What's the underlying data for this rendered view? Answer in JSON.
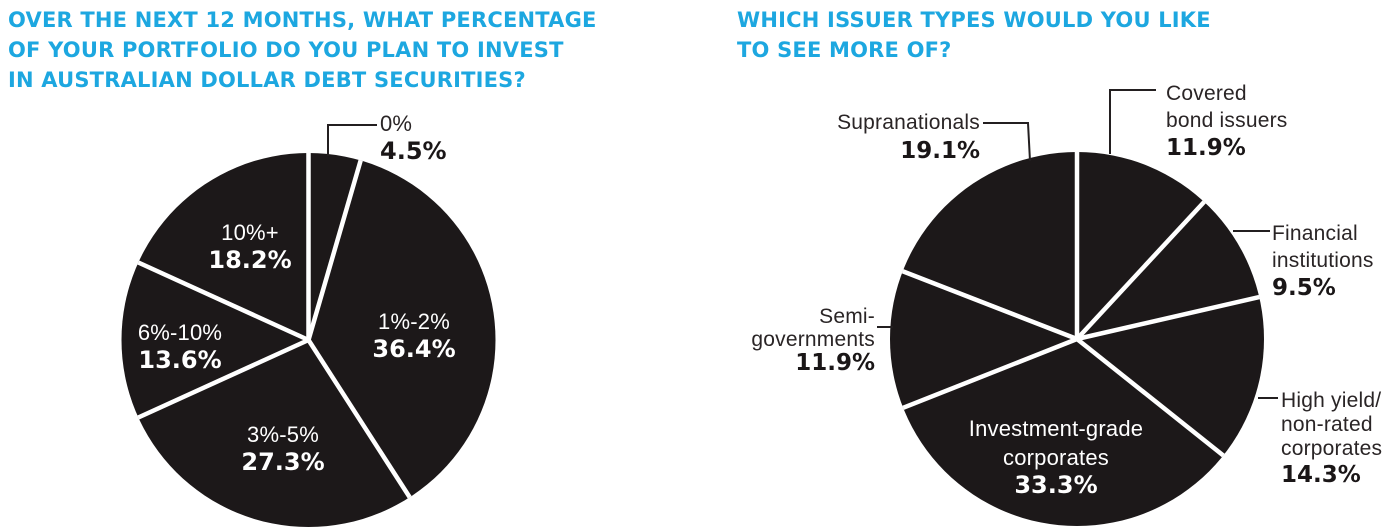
{
  "colors": {
    "background": "#ffffff",
    "title_blue": "#1da7e0",
    "pie_black": "#1c1819",
    "divider_white": "#ffffff",
    "callout_line": "#231f20",
    "outside_label_dark": "#2a2526",
    "inside_label_white": "#ffffff"
  },
  "chart_data": [
    {
      "type": "pie",
      "title": "OVER THE NEXT 12 MONTHS, WHAT PERCENTAGE OF YOUR PORTFOLIO DO YOU PLAN TO INVEST IN AUSTRALIAN DOLLAR DEBT SECURITIES?",
      "title_lines": [
        "OVER THE NEXT 12 MONTHS, WHAT PERCENTAGE",
        "OF YOUR PORTFOLIO DO YOU PLAN TO INVEST",
        "IN AUSTRALIAN DOLLAR DEBT SECURITIES?"
      ],
      "start_angle_deg": 0,
      "direction": "clockwise",
      "legend_position": "on-slices",
      "grid": false,
      "slices": [
        {
          "label": "0%",
          "value": 4.5,
          "value_label": "4.5%",
          "label_position": "outside-callout"
        },
        {
          "label": "1%-2%",
          "value": 36.4,
          "value_label": "36.4%",
          "label_position": "inside"
        },
        {
          "label": "3%-5%",
          "value": 27.3,
          "value_label": "27.3%",
          "label_position": "inside"
        },
        {
          "label": "6%-10%",
          "value": 13.6,
          "value_label": "13.6%",
          "label_position": "inside"
        },
        {
          "label": "10%+",
          "value": 18.2,
          "value_label": "18.2%",
          "label_position": "inside"
        }
      ]
    },
    {
      "type": "pie",
      "title": "WHICH ISSUER TYPES WOULD YOU LIKE TO SEE MORE OF?",
      "title_lines": [
        "WHICH ISSUER TYPES WOULD YOU LIKE",
        "TO SEE MORE OF?"
      ],
      "start_angle_deg": 0,
      "direction": "clockwise",
      "legend_position": "on-slices",
      "grid": false,
      "slices": [
        {
          "label": "Covered bond issuers",
          "label_lines": [
            "Covered",
            "bond issuers"
          ],
          "value": 11.9,
          "value_label": "11.9%",
          "label_position": "outside-callout"
        },
        {
          "label": "Financial institutions",
          "label_lines": [
            "Financial",
            "institutions"
          ],
          "value": 9.5,
          "value_label": "9.5%",
          "label_position": "outside-callout"
        },
        {
          "label": "High yield/non-rated corporates",
          "label_lines": [
            "High yield/",
            "non-rated",
            "corporates"
          ],
          "value": 14.3,
          "value_label": "14.3%",
          "label_position": "outside-callout"
        },
        {
          "label": "Investment-grade corporates",
          "label_lines": [
            "Investment-grade",
            "corporates"
          ],
          "value": 33.3,
          "value_label": "33.3%",
          "label_position": "inside"
        },
        {
          "label": "Semi-governments",
          "label_lines": [
            "Semi-",
            "governments"
          ],
          "value": 11.9,
          "value_label": "11.9%",
          "label_position": "outside-callout"
        },
        {
          "label": "Supranationals",
          "label_lines": [
            "Supranationals"
          ],
          "value": 19.1,
          "value_label": "19.1%",
          "label_position": "outside-callout"
        }
      ]
    }
  ]
}
